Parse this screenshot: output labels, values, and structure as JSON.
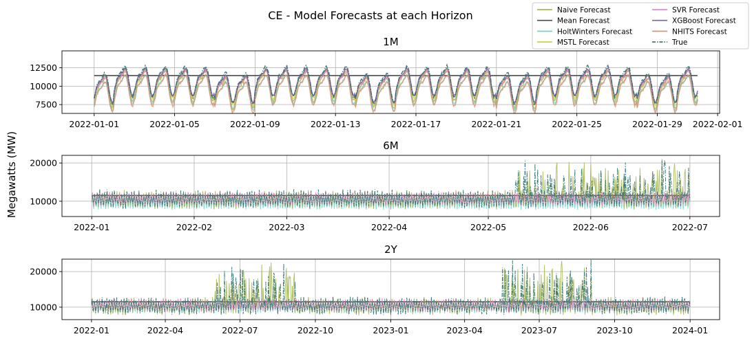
{
  "figure": {
    "title": "CE - Model Forecasts at each Horizon",
    "ylabel": "Megawatts (MW)"
  },
  "legend": {
    "placement": "upper-right",
    "entries": [
      {
        "label": "Naive Forecast",
        "color": "#9aaf3d",
        "style": "solid"
      },
      {
        "label": "SVR Forecast",
        "color": "#e377c2",
        "style": "solid"
      },
      {
        "label": "Mean Forecast",
        "color": "#4a4a4a",
        "style": "solid"
      },
      {
        "label": "XGBoost Forecast",
        "color": "#7b5ea7",
        "style": "solid"
      },
      {
        "label": "HoltWinters Forecast",
        "color": "#5fd3cc",
        "style": "solid"
      },
      {
        "label": "NHITS Forecast",
        "color": "#e08b67",
        "style": "solid"
      },
      {
        "label": "MSTL Forecast",
        "color": "#d4cc2e",
        "style": "solid"
      },
      {
        "label": "True",
        "color": "#2c6e6e",
        "style": "dashdot"
      }
    ]
  },
  "chart_data": [
    {
      "type": "line",
      "title": "1M",
      "xlabel": "",
      "ylabel": "Megawatts (MW)",
      "ylim": [
        6300,
        14800
      ],
      "yticks": [
        7500,
        10000,
        12500
      ],
      "ytick_labels": [
        "7500",
        "10000",
        "12500"
      ],
      "xlim": [
        -1.6,
        31.1
      ],
      "xticks": [
        0,
        4,
        8,
        12,
        16,
        20,
        24,
        28,
        31
      ],
      "xtick_labels": [
        "2022-01-01",
        "2022-01-05",
        "2022-01-09",
        "2022-01-13",
        "2022-01-17",
        "2022-01-21",
        "2022-01-25",
        "2022-01-29",
        "2022-02-01"
      ],
      "x_span": [
        0,
        30
      ],
      "grid": true,
      "series": [
        {
          "name": "Mean Forecast",
          "constant": 11450
        },
        {
          "name": "Naive Forecast",
          "base": 10300,
          "amp": 1800,
          "noise": 500
        },
        {
          "name": "HoltWinters Forecast",
          "base": 9800,
          "amp": 1700,
          "noise": 250
        },
        {
          "name": "MSTL Forecast",
          "base": 10600,
          "amp": 1700,
          "noise": 350
        },
        {
          "name": "NHITS Forecast",
          "base": 9700,
          "amp": 1800,
          "noise": 400
        },
        {
          "name": "SVR Forecast",
          "base": 10600,
          "amp": 1500,
          "noise": 250
        },
        {
          "name": "XGBoost Forecast",
          "base": 10800,
          "amp": 1600,
          "noise": 300
        },
        {
          "name": "True",
          "base": 10900,
          "amp": 1800,
          "noise": 450
        }
      ]
    },
    {
      "type": "line",
      "title": "6M",
      "xlabel": "",
      "ylabel": "",
      "ylim": [
        6000,
        22000
      ],
      "yticks": [
        10000,
        20000
      ],
      "ytick_labels": [
        "10000",
        "20000"
      ],
      "xlim": [
        -9,
        190
      ],
      "xticks": [
        0,
        31,
        59,
        90,
        120,
        151,
        181
      ],
      "xtick_labels": [
        "2022-01",
        "2022-02",
        "2022-03",
        "2022-04",
        "2022-05",
        "2022-06",
        "2022-07"
      ],
      "x_span": [
        0,
        181
      ],
      "grid": true,
      "series": [
        {
          "name": "Mean Forecast",
          "constant": 11500
        },
        {
          "name": "HoltWinters Forecast",
          "base": 9800,
          "amp": 1800,
          "noise": 300
        },
        {
          "name": "Naive Forecast",
          "base": 10400,
          "amp": 1700,
          "noise": 900
        },
        {
          "name": "SVR Forecast",
          "base": 10600,
          "amp": 1500,
          "noise": 500
        },
        {
          "name": "True",
          "base": 10600,
          "amp": 1700,
          "noise": 900
        }
      ]
    },
    {
      "type": "line",
      "title": "2Y",
      "xlabel": "",
      "ylabel": "",
      "ylim": [
        6500,
        23500
      ],
      "yticks": [
        10000,
        20000
      ],
      "ytick_labels": [
        "10000",
        "20000"
      ],
      "xlim": [
        -36,
        766
      ],
      "xticks": [
        0,
        90,
        181,
        273,
        365,
        455,
        546,
        638,
        730
      ],
      "xtick_labels": [
        "2022-01",
        "2022-04",
        "2022-07",
        "2022-10",
        "2023-01",
        "2023-04",
        "2023-07",
        "2023-10",
        "2024-01"
      ],
      "x_span": [
        0,
        730
      ],
      "grid": true,
      "series": [
        {
          "name": "Mean Forecast",
          "constant": 11500
        },
        {
          "name": "HoltWinters Forecast",
          "base": 10200,
          "amp": 1600,
          "noise": 500
        },
        {
          "name": "Naive Forecast",
          "base": 10300,
          "amp": 1700,
          "noise": 1000
        },
        {
          "name": "SVR Forecast",
          "base": 10500,
          "amp": 1500,
          "noise": 600
        },
        {
          "name": "True",
          "base": 10400,
          "amp": 1700,
          "noise": 1000
        }
      ]
    }
  ]
}
